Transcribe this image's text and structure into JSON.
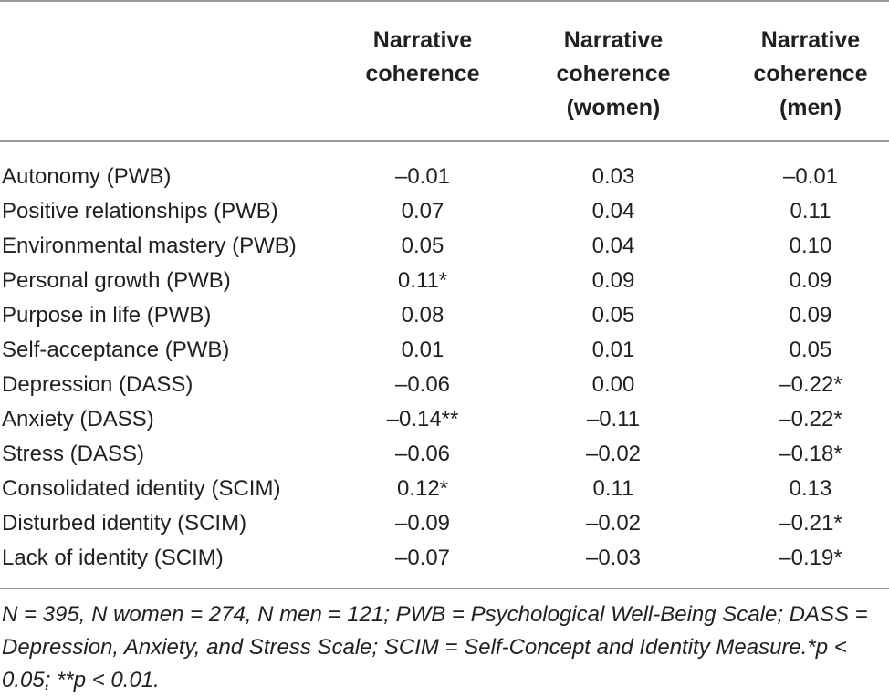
{
  "table": {
    "headers": [
      [
        "Narrative",
        "coherence"
      ],
      [
        "Narrative",
        "coherence",
        "(women)"
      ],
      [
        "Narrative",
        "coherence",
        "(men)"
      ]
    ],
    "rows": [
      {
        "label": "Autonomy (PWB)",
        "v1": "–0.01",
        "v2": "0.03",
        "v3": "–0.01"
      },
      {
        "label": "Positive relationships (PWB)",
        "v1": "0.07",
        "v2": "0.04",
        "v3": "0.11"
      },
      {
        "label": "Environmental mastery (PWB)",
        "v1": "0.05",
        "v2": "0.04",
        "v3": "0.10"
      },
      {
        "label": "Personal growth (PWB)",
        "v1": "0.11*",
        "v2": "0.09",
        "v3": "0.09"
      },
      {
        "label": "Purpose in life (PWB)",
        "v1": "0.08",
        "v2": "0.05",
        "v3": "0.09"
      },
      {
        "label": "Self-acceptance (PWB)",
        "v1": "0.01",
        "v2": "0.01",
        "v3": "0.05"
      },
      {
        "label": "Depression (DASS)",
        "v1": "–0.06",
        "v2": "0.00",
        "v3": "–0.22*"
      },
      {
        "label": "Anxiety (DASS)",
        "v1": "–0.14**",
        "v2": "–0.11",
        "v3": "–0.22*"
      },
      {
        "label": "Stress (DASS)",
        "v1": "–0.06",
        "v2": "–0.02",
        "v3": "–0.18*"
      },
      {
        "label": "Consolidated identity (SCIM)",
        "v1": "0.12*",
        "v2": "0.11",
        "v3": "0.13"
      },
      {
        "label": "Disturbed identity (SCIM)",
        "v1": "–0.09",
        "v2": "–0.02",
        "v3": "–0.21*"
      },
      {
        "label": "Lack of identity (SCIM)",
        "v1": "–0.07",
        "v2": "–0.03",
        "v3": "–0.19*"
      }
    ],
    "footnote": "N = 395, N women = 274, N men = 121; PWB = Psychological Well-Being Scale; DASS = Depression, Anxiety, and Stress Scale; SCIM = Self-Concept and Identity Measure.*p < 0.05; **p < 0.01."
  }
}
